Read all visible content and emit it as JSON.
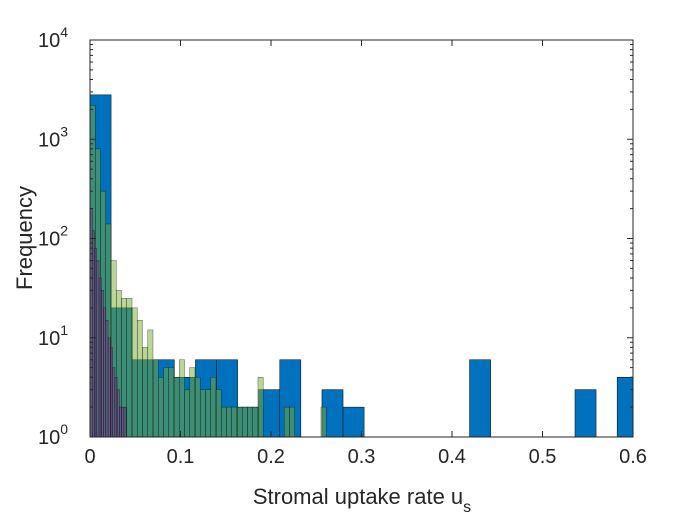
{
  "chart_data": {
    "type": "bar",
    "title": "",
    "xlabel_main": "Stromal uptake rate u",
    "xlabel_subscript": "s",
    "ylabel": "Frequency",
    "xlim": [
      0,
      0.6
    ],
    "ylim": [
      1,
      10000
    ],
    "yscale": "log",
    "grid": false,
    "x_ticks": [
      {
        "value": 0,
        "label": "0"
      },
      {
        "value": 0.1,
        "label": "0.1"
      },
      {
        "value": 0.2,
        "label": "0.2"
      },
      {
        "value": 0.3,
        "label": "0.3"
      },
      {
        "value": 0.4,
        "label": "0.4"
      },
      {
        "value": 0.5,
        "label": "0.5"
      },
      {
        "value": 0.6,
        "label": "0.6"
      }
    ],
    "y_ticks": [
      {
        "value": 1,
        "base": "10",
        "exp": "0"
      },
      {
        "value": 10,
        "base": "10",
        "exp": "1"
      },
      {
        "value": 100,
        "base": "10",
        "exp": "2"
      },
      {
        "value": 1000,
        "base": "10",
        "exp": "3"
      },
      {
        "value": 10000,
        "base": "10",
        "exp": "4"
      }
    ],
    "series": [
      {
        "color": "#0072BD",
        "opacity": 1.0,
        "bins": [
          [
            0,
            0.0233,
            2800
          ],
          [
            0.0233,
            0.0466,
            20
          ],
          [
            0.0466,
            0.0699,
            6
          ],
          [
            0.0699,
            0.0932,
            6
          ],
          [
            0.0932,
            0.1165,
            4
          ],
          [
            0.1165,
            0.1398,
            6
          ],
          [
            0.1398,
            0.1631,
            6
          ],
          [
            0.1631,
            0.1864,
            2
          ],
          [
            0.1864,
            0.2097,
            3
          ],
          [
            0.2097,
            0.233,
            6
          ],
          [
            0.2563,
            0.2796,
            3
          ],
          [
            0.2796,
            0.3029,
            2
          ],
          [
            0.4194,
            0.4427,
            6
          ],
          [
            0.5359,
            0.5592,
            3
          ],
          [
            0.5825,
            0.6058,
            4
          ]
        ]
      },
      {
        "color": "#77AC30",
        "opacity": 0.5,
        "bins": [
          [
            0,
            0.0058,
            2200
          ],
          [
            0.0058,
            0.0116,
            800
          ],
          [
            0.0116,
            0.0174,
            300
          ],
          [
            0.0174,
            0.0232,
            140
          ],
          [
            0.0232,
            0.029,
            60
          ],
          [
            0.029,
            0.0348,
            30
          ],
          [
            0.0348,
            0.0406,
            25
          ],
          [
            0.0406,
            0.0464,
            25
          ],
          [
            0.0464,
            0.0522,
            20
          ],
          [
            0.0522,
            0.058,
            15
          ],
          [
            0.058,
            0.0638,
            8
          ],
          [
            0.0638,
            0.0696,
            12
          ],
          [
            0.0696,
            0.0754,
            6
          ],
          [
            0.0754,
            0.0812,
            4
          ],
          [
            0.0812,
            0.087,
            5
          ],
          [
            0.087,
            0.0928,
            5
          ],
          [
            0.0928,
            0.0986,
            4
          ],
          [
            0.0986,
            0.1044,
            6
          ],
          [
            0.1044,
            0.1102,
            3
          ],
          [
            0.1102,
            0.116,
            5
          ],
          [
            0.116,
            0.1218,
            4
          ],
          [
            0.1218,
            0.1276,
            3
          ],
          [
            0.1276,
            0.1334,
            3
          ],
          [
            0.1334,
            0.1392,
            4
          ],
          [
            0.1392,
            0.145,
            3
          ],
          [
            0.145,
            0.1508,
            2
          ],
          [
            0.1508,
            0.1566,
            2
          ],
          [
            0.1566,
            0.1624,
            2
          ],
          [
            0.1624,
            0.1682,
            2
          ],
          [
            0.1682,
            0.174,
            2
          ],
          [
            0.174,
            0.1798,
            2
          ],
          [
            0.1798,
            0.1856,
            2
          ],
          [
            0.1856,
            0.1914,
            4
          ],
          [
            0.2146,
            0.2204,
            2
          ],
          [
            0.2204,
            0.2262,
            2
          ],
          [
            0.2552,
            0.261,
            2
          ]
        ]
      },
      {
        "color": "#7E2F8E",
        "opacity": 0.5,
        "bins": [
          [
            0,
            0.0025,
            200
          ],
          [
            0.0025,
            0.005,
            120
          ],
          [
            0.005,
            0.0075,
            80
          ],
          [
            0.0075,
            0.01,
            60
          ],
          [
            0.01,
            0.0125,
            40
          ],
          [
            0.0125,
            0.015,
            30
          ],
          [
            0.015,
            0.0175,
            20
          ],
          [
            0.0175,
            0.02,
            15
          ],
          [
            0.02,
            0.0225,
            10
          ],
          [
            0.0225,
            0.025,
            8
          ],
          [
            0.025,
            0.0275,
            5
          ],
          [
            0.0275,
            0.03,
            4
          ],
          [
            0.03,
            0.0325,
            3
          ],
          [
            0.0325,
            0.035,
            2
          ],
          [
            0.035,
            0.0375,
            2
          ],
          [
            0.0375,
            0.04,
            2
          ]
        ]
      }
    ]
  }
}
